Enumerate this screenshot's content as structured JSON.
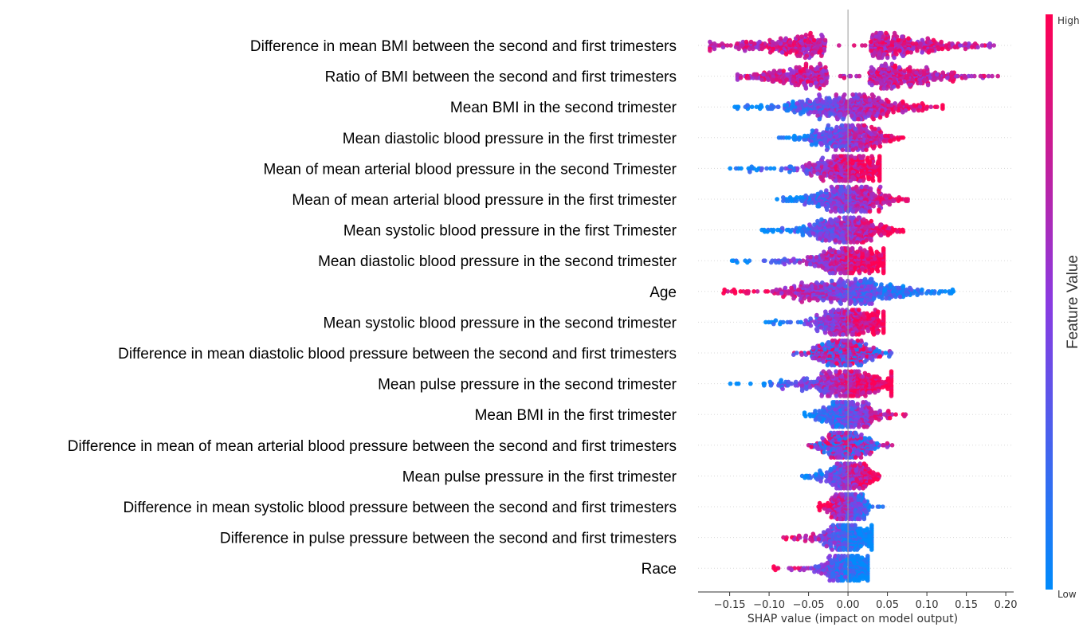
{
  "chart_data": {
    "type": "scatter",
    "subtype": "shap-beeswarm",
    "title": "",
    "xlabel": "SHAP value (impact on model output)",
    "ylabel": "",
    "xlim": [
      -0.19,
      0.21
    ],
    "xticks": [
      -0.15,
      -0.1,
      -0.05,
      0.0,
      0.05,
      0.1,
      0.15,
      0.2
    ],
    "xtick_labels": [
      "−0.15",
      "−0.10",
      "−0.05",
      "0.00",
      "0.05",
      "0.10",
      "0.15",
      "0.20"
    ],
    "grid": false,
    "colorbar": {
      "title": "Feature Value",
      "high_label": "High",
      "low_label": "Low",
      "high_color": "#ff0052",
      "low_color": "#008bfb"
    },
    "features": [
      {
        "name": "Difference in mean BMI between the second and first trimesters",
        "min": -0.175,
        "max": 0.185,
        "mode": "neg"
      },
      {
        "name": "Ratio of BMI between the second and first trimesters",
        "min": -0.14,
        "max": 0.19,
        "mode": "neg"
      },
      {
        "name": "Mean BMI in the second trimester",
        "min": -0.155,
        "max": 0.12,
        "mode": "pos"
      },
      {
        "name": "Mean diastolic blood pressure in the first trimester",
        "min": -0.09,
        "max": 0.07,
        "mode": "pos"
      },
      {
        "name": "Mean of mean arterial blood pressure in the second Trimester",
        "min": -0.15,
        "max": 0.04,
        "mode": "pos"
      },
      {
        "name": "Mean of mean arterial blood pressure in the first trimester",
        "min": -0.095,
        "max": 0.08,
        "mode": "pos"
      },
      {
        "name": "Mean systolic blood pressure in the first Trimester",
        "min": -0.11,
        "max": 0.07,
        "mode": "pos"
      },
      {
        "name": "Mean diastolic blood pressure in the second trimester",
        "min": -0.15,
        "max": 0.045,
        "mode": "pos"
      },
      {
        "name": "Age",
        "min": -0.16,
        "max": 0.135,
        "mode": "neg"
      },
      {
        "name": "Mean systolic blood pressure in the second trimester",
        "min": -0.105,
        "max": 0.045,
        "mode": "pos"
      },
      {
        "name": "Difference in mean diastolic blood pressure between the second and first trimesters",
        "min": -0.075,
        "max": 0.055,
        "mode": "mix"
      },
      {
        "name": "Mean pulse pressure in the second trimester",
        "min": -0.15,
        "max": 0.055,
        "mode": "pos"
      },
      {
        "name": "Mean BMI in the first trimester",
        "min": -0.055,
        "max": 0.075,
        "mode": "pos"
      },
      {
        "name": "Difference in mean of mean arterial blood pressure between the second and first trimesters",
        "min": -0.05,
        "max": 0.06,
        "mode": "mix"
      },
      {
        "name": "Mean pulse pressure in the first trimester",
        "min": -0.06,
        "max": 0.04,
        "mode": "pos"
      },
      {
        "name": "Difference in mean systolic blood pressure between the second and first trimesters",
        "min": -0.04,
        "max": 0.045,
        "mode": "neg"
      },
      {
        "name": "Difference in pulse pressure between the second and first trimesters",
        "min": -0.085,
        "max": 0.03,
        "mode": "neg"
      },
      {
        "name": "Race",
        "min": -0.095,
        "max": 0.025,
        "mode": "neg"
      }
    ]
  }
}
